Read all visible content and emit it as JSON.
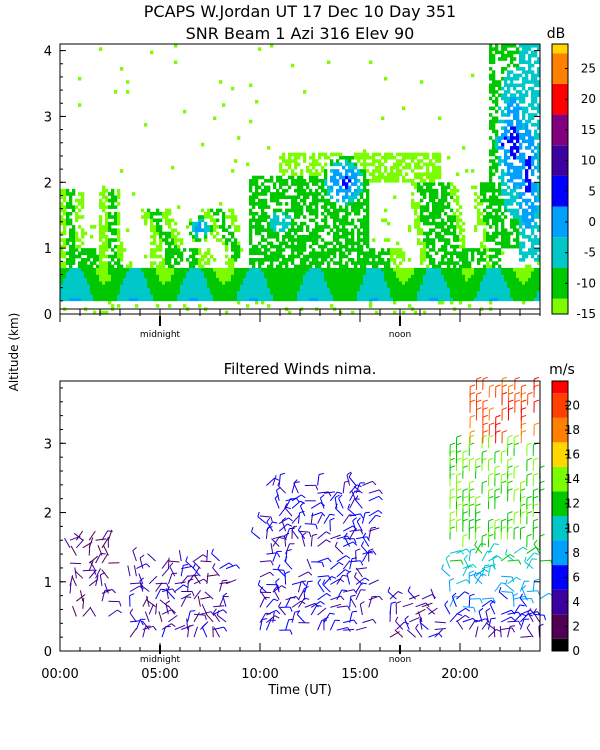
{
  "figure": {
    "title_line1": "PCAPS W.Jordan UT  17 Dec 10 Day 351",
    "title_line2": "SNR Beam 1 Azi 316 Elev 90",
    "shared_ylabel": "Altitude (km)",
    "xlabel": "Time (UT)"
  },
  "chart_data": [
    {
      "type": "heatmap",
      "title": "SNR Beam 1 Azi 316 Elev 90",
      "ylabel": "Altitude (km)",
      "xlim": [
        0,
        24
      ],
      "ylim": [
        0,
        4.1
      ],
      "y_ticks": [
        0,
        1,
        2,
        3,
        4
      ],
      "x_markers": [
        "midnight",
        "noon"
      ],
      "colorbar": {
        "unit": "dB",
        "ticks": [
          25,
          20,
          15,
          10,
          5,
          0,
          -5,
          -10,
          -15
        ],
        "range": [
          -15,
          29
        ],
        "colors": [
          "#7cfc00",
          "#00c800",
          "#00c8c8",
          "#00a0ff",
          "#0000ff",
          "#3c00a0",
          "#800080",
          "#ff0000",
          "#ff8000",
          "#ffd700"
        ]
      },
      "series": [
        {
          "name": "data_floor_km",
          "value": 0.22
        },
        {
          "name": "strong_signal_layer_km",
          "values": [
            0.22,
            0.7
          ]
        },
        {
          "name": "upper_echo_cores",
          "values": [
            {
              "x": 14.3,
              "y": 2.0,
              "dB": 5
            },
            {
              "x": 22.3,
              "y": 2.6,
              "dB": 5
            },
            {
              "x": 23.4,
              "y": 2.2,
              "dB": 3
            },
            {
              "x": 7.0,
              "y": 1.3,
              "dB": 0
            }
          ]
        }
      ]
    },
    {
      "type": "scatter",
      "title": "Filtered Winds nima.",
      "xlabel": "Time (UT)",
      "ylabel": "Altitude (km)",
      "xlim": [
        0,
        24
      ],
      "ylim": [
        0,
        3.9
      ],
      "x_ticks": [
        "00:00",
        "05:00",
        "10:00",
        "15:00",
        "20:00"
      ],
      "y_ticks": [
        0,
        1,
        2,
        3
      ],
      "x_markers": [
        "midnight",
        "noon"
      ],
      "colorbar": {
        "unit": "m/s",
        "ticks": [
          20,
          18,
          16,
          14,
          12,
          10,
          8,
          6,
          4,
          2,
          0
        ],
        "range": [
          0,
          22
        ],
        "colors": [
          "#000000",
          "#500050",
          "#3c00a0",
          "#0000ff",
          "#00a0ff",
          "#00c8c8",
          "#00c800",
          "#7cfc00",
          "#ffd700",
          "#ff8000",
          "#ff4000",
          "#ff0000"
        ]
      },
      "series": [
        {
          "name": "wind_speed_regions",
          "values": [
            {
              "x_range": [
                0.5,
                2.5
              ],
              "y_range": [
                0.5,
                1.7
              ],
              "speed": 3
            },
            {
              "x_range": [
                3.5,
                8.5
              ],
              "y_range": [
                0.2,
                1.4
              ],
              "speed": 4
            },
            {
              "x_range": [
                10.0,
                15.5
              ],
              "y_range": [
                0.3,
                2.4
              ],
              "speed": 5
            },
            {
              "x_range": [
                16.5,
                19.0
              ],
              "y_range": [
                0.2,
                0.8
              ],
              "speed": 4
            },
            {
              "x_range": [
                19.5,
                24.0
              ],
              "y_range": [
                0.2,
                1.5
              ],
              "speed": 8
            },
            {
              "x_range": [
                19.5,
                24.0
              ],
              "y_range": [
                1.5,
                3.0
              ],
              "speed": 13
            },
            {
              "x_range": [
                20.5,
                24.0
              ],
              "y_range": [
                3.0,
                3.8
              ],
              "speed": 20
            }
          ]
        }
      ]
    }
  ]
}
